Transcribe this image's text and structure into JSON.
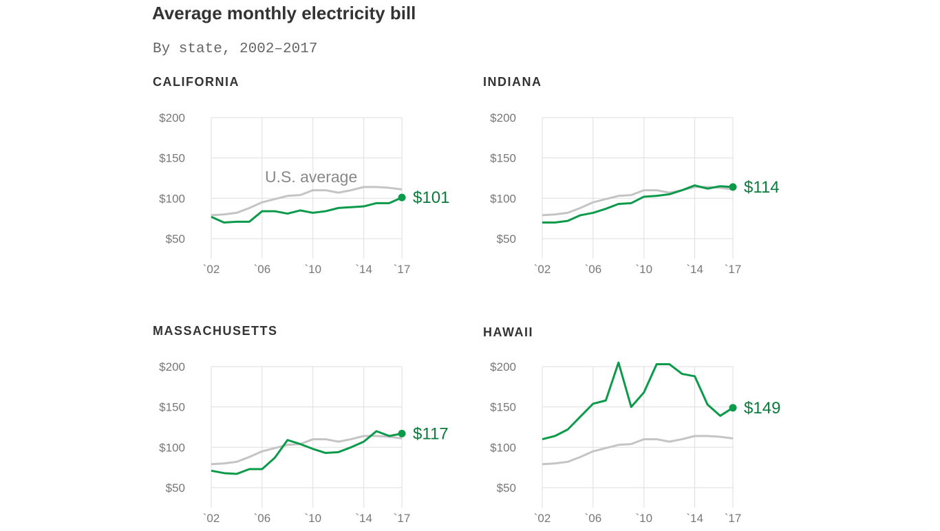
{
  "title": "Average monthly electricity bill",
  "subtitle": "By state, 2002–2017",
  "colors": {
    "state": "#0a9a4a",
    "us": "#c4c4c4",
    "grid": "#dddddd",
    "text": "#777777"
  },
  "chart_data": [
    {
      "type": "line",
      "title": "CALIFORNIA",
      "x": [
        2002,
        2003,
        2004,
        2005,
        2006,
        2007,
        2008,
        2009,
        2010,
        2011,
        2012,
        2013,
        2014,
        2015,
        2016,
        2017
      ],
      "x_tick_labels": [
        "`02",
        "`06",
        "`10",
        "`14",
        "`17"
      ],
      "x_ticks": [
        2002,
        2006,
        2010,
        2014,
        2017
      ],
      "y_tick_labels": [
        "$200",
        "$150",
        "$100",
        "$50"
      ],
      "y_ticks": [
        200,
        150,
        100,
        50
      ],
      "ylim": [
        25,
        200
      ],
      "grid": true,
      "series": [
        {
          "name": "U.S. average",
          "values": [
            79,
            80,
            82,
            88,
            95,
            99,
            103,
            104,
            110,
            110,
            107,
            110,
            114,
            114,
            113,
            111
          ]
        },
        {
          "values": [
            77,
            70,
            71,
            71,
            84,
            84,
            81,
            85,
            82,
            84,
            88,
            89,
            90,
            94,
            94,
            101
          ]
        }
      ],
      "end_label": "$101",
      "series_label": "U.S. average"
    },
    {
      "type": "line",
      "title": "INDIANA",
      "x": [
        2002,
        2003,
        2004,
        2005,
        2006,
        2007,
        2008,
        2009,
        2010,
        2011,
        2012,
        2013,
        2014,
        2015,
        2016,
        2017
      ],
      "x_tick_labels": [
        "`02",
        "`06",
        "`10",
        "`14",
        "`17"
      ],
      "x_ticks": [
        2002,
        2006,
        2010,
        2014,
        2017
      ],
      "y_tick_labels": [
        "$200",
        "$150",
        "$100",
        "$50"
      ],
      "y_ticks": [
        200,
        150,
        100,
        50
      ],
      "ylim": [
        25,
        200
      ],
      "grid": true,
      "series": [
        {
          "values": [
            79,
            80,
            82,
            88,
            95,
            99,
            103,
            104,
            110,
            110,
            107,
            110,
            114,
            114,
            113,
            111
          ]
        },
        {
          "values": [
            70,
            70,
            72,
            79,
            82,
            87,
            93,
            94,
            102,
            103,
            105,
            110,
            116,
            112,
            115,
            114
          ]
        }
      ],
      "end_label": "$114"
    },
    {
      "type": "line",
      "title": "MASSACHUSETTS",
      "x": [
        2002,
        2003,
        2004,
        2005,
        2006,
        2007,
        2008,
        2009,
        2010,
        2011,
        2012,
        2013,
        2014,
        2015,
        2016,
        2017
      ],
      "x_tick_labels": [
        "`02",
        "`06",
        "`10",
        "`14",
        "`17"
      ],
      "x_ticks": [
        2002,
        2006,
        2010,
        2014,
        2017
      ],
      "y_tick_labels": [
        "$200",
        "$150",
        "$100",
        "$50"
      ],
      "y_ticks": [
        200,
        150,
        100,
        50
      ],
      "ylim": [
        25,
        200
      ],
      "grid": true,
      "series": [
        {
          "values": [
            79,
            80,
            82,
            88,
            95,
            99,
            103,
            104,
            110,
            110,
            107,
            110,
            114,
            114,
            113,
            111
          ]
        },
        {
          "values": [
            71,
            68,
            67,
            73,
            73,
            87,
            109,
            104,
            98,
            93,
            94,
            100,
            107,
            120,
            114,
            117
          ]
        }
      ],
      "end_label": "$117"
    },
    {
      "type": "line",
      "title": "HAWAII",
      "x": [
        2002,
        2003,
        2004,
        2005,
        2006,
        2007,
        2008,
        2009,
        2010,
        2011,
        2012,
        2013,
        2014,
        2015,
        2016,
        2017
      ],
      "x_tick_labels": [
        "`02",
        "`06",
        "`10",
        "`14",
        "`17"
      ],
      "x_ticks": [
        2002,
        2006,
        2010,
        2014,
        2017
      ],
      "y_tick_labels": [
        "$200",
        "$150",
        "$100",
        "$50"
      ],
      "y_ticks": [
        200,
        150,
        100,
        50
      ],
      "ylim": [
        25,
        200
      ],
      "grid": true,
      "series": [
        {
          "values": [
            79,
            80,
            82,
            88,
            95,
            99,
            103,
            104,
            110,
            110,
            107,
            110,
            114,
            114,
            113,
            111
          ]
        },
        {
          "values": [
            110,
            114,
            122,
            138,
            154,
            158,
            205,
            150,
            168,
            203,
            203,
            191,
            188,
            153,
            139,
            149
          ]
        }
      ],
      "end_label": "$149"
    }
  ]
}
